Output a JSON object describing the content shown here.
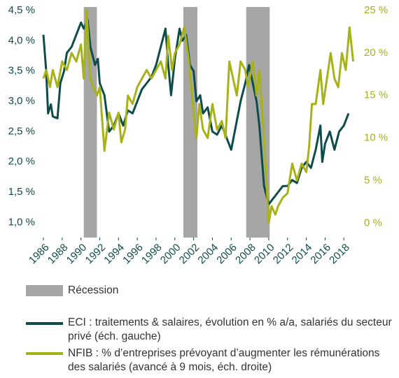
{
  "chart_data": {
    "type": "line",
    "xlim": [
      1985.85,
      2019.4
    ],
    "xticks": [
      1986,
      1988,
      1990,
      1992,
      1994,
      1996,
      1998,
      2000,
      2002,
      2004,
      2006,
      2008,
      2010,
      2012,
      2014,
      2016,
      2018
    ],
    "ylim": [
      0.75,
      4.5
    ],
    "yticks": [
      {
        "value": 1.0,
        "label": "1,0 %"
      },
      {
        "value": 1.5,
        "label": "1,5 %"
      },
      {
        "value": 2.0,
        "label": "2,0 %"
      },
      {
        "value": 2.5,
        "label": "2,5 %"
      },
      {
        "value": 3.0,
        "label": "3,0 %"
      },
      {
        "value": 3.5,
        "label": "3,5 %"
      },
      {
        "value": 4.0,
        "label": "4,0 %"
      },
      {
        "value": 4.5,
        "label": "4,5 %"
      }
    ],
    "y2lim": [
      -1.7,
      25
    ],
    "y2ticks": [
      {
        "value": 0,
        "label": "0 %"
      },
      {
        "value": 5,
        "label": "5 %"
      },
      {
        "value": 10,
        "label": "10 %"
      },
      {
        "value": 15,
        "label": "15 %"
      },
      {
        "value": 20,
        "label": "20 %"
      },
      {
        "value": 25,
        "label": "25 %"
      }
    ],
    "recession_label": "Récession",
    "recession_color": "#a6a6a6",
    "recessions": [
      [
        1990.3,
        1991.7
      ],
      [
        2000.9,
        2002.4
      ],
      [
        2007.6,
        2010.1
      ]
    ],
    "series": [
      {
        "name": "ECI : traitements & salaires, évolution en % a/a, salariés du secteur privé (éch. gauche)",
        "color": "#0e4b4b",
        "axis": "y",
        "x": [
          1986.0,
          1986.3,
          1986.5,
          1986.8,
          1987.0,
          1987.5,
          1987.8,
          1988.2,
          1988.5,
          1989.0,
          1989.5,
          1990.0,
          1990.3,
          1990.7,
          1991.0,
          1991.5,
          1991.8,
          1992.0,
          1992.5,
          1993.0,
          1993.5,
          1994.0,
          1994.5,
          1995.0,
          1995.5,
          1996.0,
          1996.5,
          1997.0,
          1997.5,
          1998.0,
          1998.5,
          1999.0,
          1999.3,
          1999.6,
          2000.0,
          2000.5,
          2000.8,
          2001.2,
          2001.6,
          2002.0,
          2002.3,
          2002.7,
          2003.0,
          2003.5,
          2004.0,
          2004.5,
          2005.0,
          2005.5,
          2006.0,
          2006.5,
          2007.0,
          2007.5,
          2007.9,
          2008.3,
          2008.7,
          2009.0,
          2009.5,
          2010.0,
          2010.5,
          2011.0,
          2011.5,
          2012.0,
          2012.5,
          2013.0,
          2013.5,
          2014.0,
          2014.5,
          2015.0,
          2015.5,
          2015.7,
          2016.0,
          2016.5,
          2017.0,
          2017.5,
          2018.0,
          2018.5
        ],
        "values": [
          4.1,
          3.5,
          2.8,
          2.95,
          2.75,
          2.72,
          3.3,
          3.5,
          3.8,
          3.9,
          4.1,
          4.3,
          4.2,
          4.35,
          3.9,
          3.6,
          3.7,
          3.3,
          3.1,
          2.5,
          2.6,
          2.8,
          2.6,
          2.85,
          2.8,
          3.0,
          3.2,
          3.3,
          3.4,
          3.6,
          3.9,
          4.2,
          3.6,
          3.1,
          3.7,
          4.2,
          4.0,
          4.1,
          3.6,
          3.5,
          3.0,
          3.1,
          2.8,
          2.9,
          2.5,
          2.45,
          2.6,
          2.4,
          2.2,
          2.6,
          3.0,
          3.3,
          3.6,
          3.3,
          3.0,
          2.6,
          1.6,
          1.3,
          1.4,
          1.5,
          1.6,
          1.6,
          1.7,
          1.65,
          1.9,
          2.0,
          1.9,
          2.2,
          2.6,
          2.0,
          2.3,
          2.5,
          2.2,
          2.5,
          2.6,
          2.8
        ]
      },
      {
        "name": "NFIB : % d’entreprises prévoyant d’augmenter les rémunérations des salariés (avancé à 9 mois, éch. droite)",
        "color": "#a7b219",
        "axis": "y2",
        "x": [
          1986.0,
          1986.3,
          1986.7,
          1987.0,
          1987.5,
          1988.0,
          1988.5,
          1989.0,
          1989.5,
          1990.0,
          1990.3,
          1990.6,
          1991.0,
          1991.3,
          1991.7,
          1992.0,
          1992.5,
          1993.0,
          1993.5,
          1994.0,
          1994.3,
          1994.7,
          1995.0,
          1995.5,
          1996.0,
          1996.5,
          1997.0,
          1997.5,
          1998.0,
          1998.5,
          1999.0,
          1999.3,
          1999.7,
          2000.0,
          2000.5,
          2001.0,
          2001.5,
          2002.0,
          2002.3,
          2002.6,
          2003.0,
          2003.5,
          2004.0,
          2004.5,
          2005.0,
          2005.4,
          2005.8,
          2006.2,
          2006.6,
          2007.0,
          2007.5,
          2007.8,
          2008.3,
          2008.7,
          2009.0,
          2009.5,
          2010.0,
          2010.3,
          2010.7,
          2011.0,
          2011.5,
          2012.0,
          2012.5,
          2013.0,
          2013.5,
          2014.0,
          2014.3,
          2014.6,
          2015.0,
          2015.5,
          2015.8,
          2016.2,
          2016.6,
          2017.0,
          2017.4,
          2017.8,
          2018.2,
          2018.6,
          2019.0
        ],
        "values": [
          17,
          18,
          16,
          18,
          16,
          19,
          18,
          20,
          19,
          21,
          17,
          25,
          17,
          16,
          15,
          16,
          8.5,
          13,
          11,
          13,
          9.5,
          11,
          15,
          14,
          16,
          17,
          18,
          17,
          18,
          19,
          17,
          22,
          18,
          20,
          21,
          23,
          19,
          13,
          10,
          14,
          11,
          10,
          14,
          11,
          12,
          10,
          19,
          17,
          15,
          19,
          18,
          16,
          19,
          15,
          18,
          10,
          0,
          2,
          1,
          2,
          3,
          3.5,
          7,
          5,
          7,
          6,
          9,
          14,
          14,
          18,
          14,
          17,
          20,
          17,
          16,
          20,
          18,
          23,
          19
        ]
      }
    ]
  }
}
